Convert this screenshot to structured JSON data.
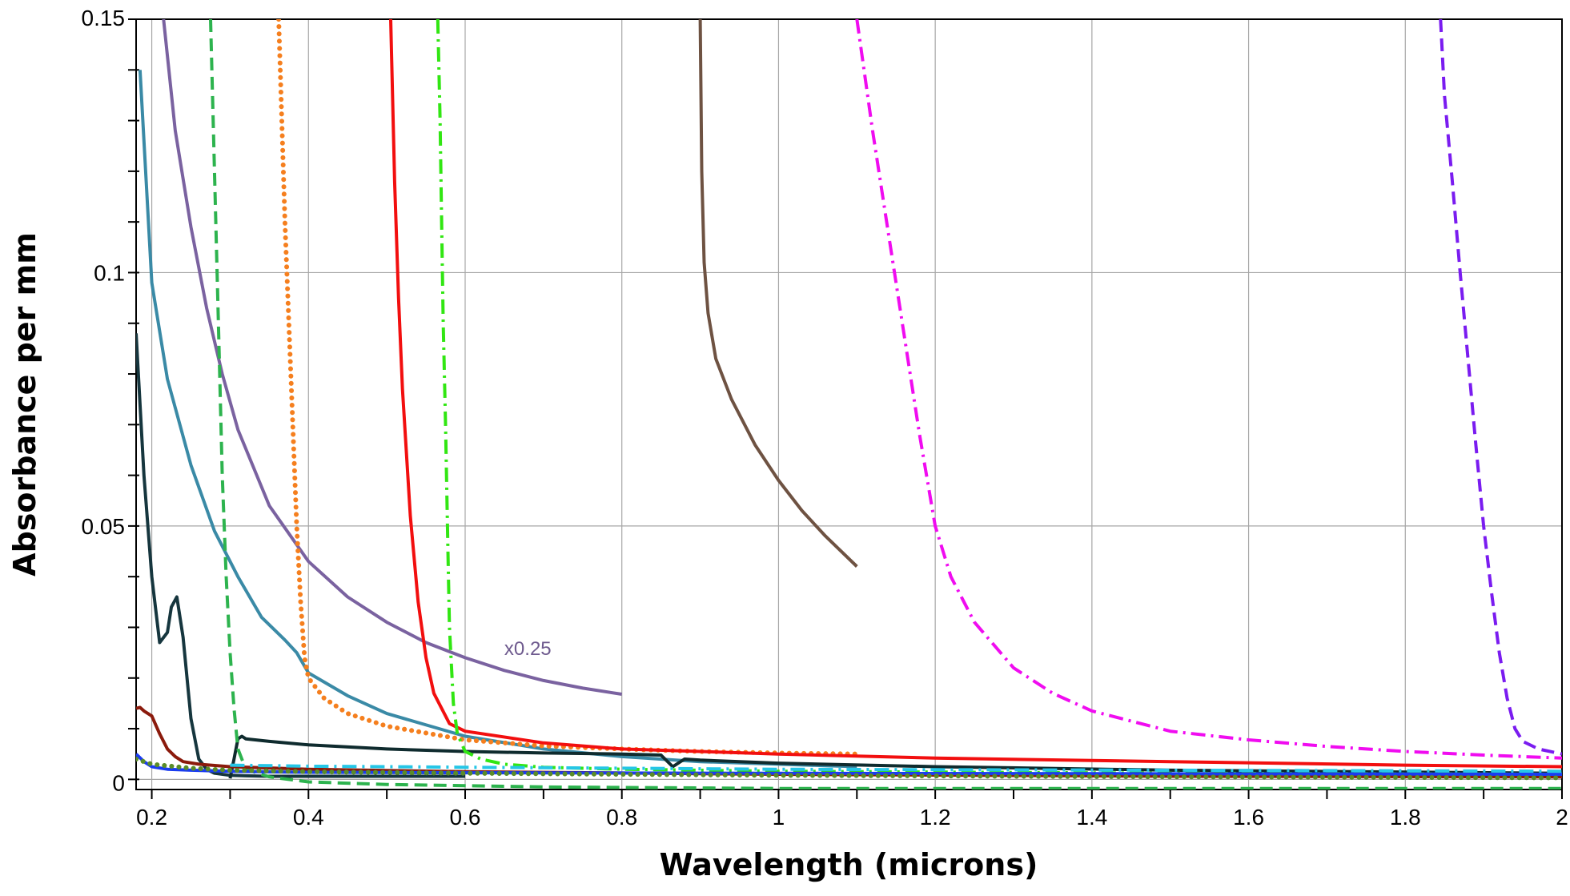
{
  "chart_data": {
    "type": "line",
    "xlabel": "Wavelength (microns)",
    "ylabel": "Absorbance per mm",
    "xlim": [
      0.18,
      2.0
    ],
    "ylim": [
      -0.002,
      0.15
    ],
    "x_ticks": [
      0.2,
      0.4,
      0.6,
      0.8,
      1,
      1.2,
      1.4,
      1.6,
      1.8,
      2
    ],
    "x_tick_labels": [
      "0.2",
      "0.4",
      "0.6",
      "0.8",
      "1",
      "1.2",
      "1.4",
      "1.6",
      "1.8",
      "2"
    ],
    "y_ticks": [
      0,
      0.05,
      0.1,
      0.15
    ],
    "y_tick_labels": [
      "0",
      "0.05",
      "0.1",
      "0.15"
    ],
    "grid": true,
    "legend": "none",
    "annotations": [
      {
        "text": "x0.25",
        "x": 0.65,
        "y": 0.023
      }
    ],
    "series": [
      {
        "color": "#7a62a0",
        "dash": "solid",
        "x": [
          0.215,
          0.23,
          0.25,
          0.27,
          0.29,
          0.31,
          0.35,
          0.4,
          0.45,
          0.5,
          0.55,
          0.6,
          0.65,
          0.7,
          0.75,
          0.8
        ],
        "y": [
          0.15,
          0.128,
          0.109,
          0.093,
          0.08,
          0.069,
          0.054,
          0.043,
          0.036,
          0.031,
          0.027,
          0.024,
          0.0215,
          0.0195,
          0.018,
          0.0168
        ]
      },
      {
        "color": "#3a8aa6",
        "dash": "solid",
        "x": [
          0.185,
          0.2,
          0.22,
          0.25,
          0.28,
          0.31,
          0.34,
          0.37,
          0.385,
          0.4,
          0.45,
          0.5,
          0.6,
          0.7,
          0.8,
          0.9,
          1.0,
          1.1
        ],
        "y": [
          0.14,
          0.098,
          0.079,
          0.062,
          0.049,
          0.04,
          0.032,
          0.0275,
          0.025,
          0.021,
          0.0165,
          0.013,
          0.0085,
          0.006,
          0.0045,
          0.0035,
          0.003,
          0.0025
        ]
      },
      {
        "color": "#16363e",
        "dash": "solid",
        "x": [
          0.18,
          0.19,
          0.2,
          0.21,
          0.22,
          0.225,
          0.232,
          0.24,
          0.25,
          0.26,
          0.27,
          0.28,
          0.3,
          0.32,
          0.35,
          0.4,
          0.5,
          0.6
        ],
        "y": [
          0.088,
          0.06,
          0.04,
          0.027,
          0.029,
          0.034,
          0.036,
          0.028,
          0.012,
          0.004,
          0.002,
          0.0012,
          0.0008,
          0.0007,
          0.0006,
          0.0006,
          0.0006,
          0.0006
        ]
      },
      {
        "color": "#0f2b2e",
        "dash": "solid",
        "x": [
          0.3,
          0.305,
          0.31,
          0.315,
          0.32,
          0.35,
          0.4,
          0.5,
          0.6,
          0.7,
          0.8,
          0.85,
          0.865,
          0.88,
          0.9,
          1.0,
          1.2,
          1.5,
          2.0
        ],
        "y": [
          0.0002,
          0.004,
          0.008,
          0.0085,
          0.008,
          0.0075,
          0.0068,
          0.006,
          0.0055,
          0.0052,
          0.005,
          0.0048,
          0.0025,
          0.004,
          0.0038,
          0.0032,
          0.0025,
          0.0018,
          0.0012
        ]
      },
      {
        "color": "#2db34e",
        "dash": "dashed",
        "x": [
          0.275,
          0.28,
          0.285,
          0.29,
          0.295,
          0.3,
          0.305,
          0.31,
          0.32,
          0.35,
          0.4,
          0.5,
          0.7,
          1.0,
          1.5,
          2.0
        ],
        "y": [
          0.15,
          0.12,
          0.09,
          0.06,
          0.04,
          0.025,
          0.014,
          0.006,
          0.002,
          0.0005,
          -0.0005,
          -0.001,
          -0.0015,
          -0.0018,
          -0.0018,
          -0.0018
        ]
      },
      {
        "color": "#f57f1e",
        "dash": "dotted",
        "x": [
          0.362,
          0.366,
          0.37,
          0.375,
          0.38,
          0.385,
          0.39,
          0.395,
          0.4,
          0.42,
          0.45,
          0.5,
          0.6,
          0.7,
          0.8,
          0.9,
          1.0,
          1.1
        ],
        "y": [
          0.15,
          0.13,
          0.11,
          0.09,
          0.07,
          0.05,
          0.035,
          0.024,
          0.02,
          0.016,
          0.013,
          0.0105,
          0.0078,
          0.0066,
          0.006,
          0.0055,
          0.0052,
          0.005
        ]
      },
      {
        "color": "#f20f0f",
        "dash": "solid",
        "x": [
          0.505,
          0.51,
          0.515,
          0.52,
          0.53,
          0.54,
          0.55,
          0.56,
          0.58,
          0.6,
          0.7,
          0.8,
          1.0,
          1.2,
          1.5,
          1.8,
          2.0
        ],
        "y": [
          0.15,
          0.118,
          0.095,
          0.077,
          0.052,
          0.035,
          0.024,
          0.017,
          0.011,
          0.0095,
          0.0072,
          0.006,
          0.005,
          0.0042,
          0.0035,
          0.0028,
          0.0025
        ]
      },
      {
        "color": "#31e612",
        "dash": "dashdot",
        "x": [
          0.565,
          0.568,
          0.57,
          0.572,
          0.575,
          0.578,
          0.58,
          0.585,
          0.59,
          0.6,
          0.62,
          0.65,
          0.7,
          0.8,
          1.0,
          1.5,
          2.0
        ],
        "y": [
          0.15,
          0.13,
          0.11,
          0.09,
          0.07,
          0.045,
          0.03,
          0.015,
          0.009,
          0.0055,
          0.004,
          0.003,
          0.0024,
          0.002,
          0.0016,
          0.0012,
          0.001
        ]
      },
      {
        "color": "#6e5242",
        "dash": "solid",
        "x": [
          0.9,
          0.902,
          0.905,
          0.91,
          0.92,
          0.94,
          0.97,
          1.0,
          1.03,
          1.06,
          1.1
        ],
        "y": [
          0.15,
          0.12,
          0.102,
          0.092,
          0.083,
          0.075,
          0.066,
          0.059,
          0.053,
          0.048,
          0.042
        ]
      },
      {
        "color": "#f00cf0",
        "dash": "dashdot",
        "x": [
          1.1,
          1.12,
          1.14,
          1.16,
          1.18,
          1.2,
          1.22,
          1.25,
          1.3,
          1.35,
          1.4,
          1.5,
          1.6,
          1.7,
          1.8,
          1.9,
          2.0
        ],
        "y": [
          0.15,
          0.128,
          0.108,
          0.088,
          0.068,
          0.05,
          0.04,
          0.031,
          0.022,
          0.017,
          0.0135,
          0.0095,
          0.0078,
          0.0065,
          0.0055,
          0.0048,
          0.0042
        ]
      },
      {
        "color": "#7a1cf0",
        "dash": "dashed",
        "x": [
          1.845,
          1.85,
          1.86,
          1.87,
          1.88,
          1.89,
          1.9,
          1.91,
          1.92,
          1.93,
          1.94,
          1.95,
          1.97,
          2.0
        ],
        "y": [
          0.15,
          0.135,
          0.118,
          0.1,
          0.083,
          0.066,
          0.05,
          0.037,
          0.025,
          0.016,
          0.01,
          0.0075,
          0.006,
          0.005
        ]
      },
      {
        "color": "#8b1a0c",
        "dash": "solid",
        "x": [
          0.18,
          0.185,
          0.19,
          0.2,
          0.21,
          0.22,
          0.23,
          0.24,
          0.26,
          0.3,
          0.4,
          0.6,
          1.0,
          1.5,
          2.0
        ],
        "y": [
          0.014,
          0.0142,
          0.0135,
          0.0125,
          0.009,
          0.006,
          0.0045,
          0.0035,
          0.003,
          0.0025,
          0.002,
          0.0015,
          0.001,
          0.0006,
          0.0005
        ]
      },
      {
        "color": "#1a3cf0",
        "dash": "solid",
        "x": [
          0.18,
          0.19,
          0.2,
          0.22,
          0.25,
          0.3,
          0.4,
          0.6,
          1.0,
          1.5,
          2.0
        ],
        "y": [
          0.005,
          0.0035,
          0.0025,
          0.002,
          0.0018,
          0.0016,
          0.0014,
          0.0013,
          0.0012,
          0.0011,
          0.001
        ]
      },
      {
        "color": "#26c6e6",
        "dash": "dashdot",
        "x": [
          0.3,
          0.4,
          0.5,
          0.6,
          0.7,
          0.8,
          0.9,
          1.0,
          1.2,
          1.5,
          1.8,
          2.0
        ],
        "y": [
          0.0028,
          0.0026,
          0.0025,
          0.0024,
          0.0023,
          0.0022,
          0.0021,
          0.002,
          0.0019,
          0.0018,
          0.0017,
          0.0016
        ]
      },
      {
        "color": "#5a8c28",
        "dash": "dotted",
        "x": [
          0.18,
          0.2,
          0.25,
          0.3,
          0.4,
          0.6,
          0.8,
          1.0,
          1.5,
          2.0
        ],
        "y": [
          0.004,
          0.003,
          0.0022,
          0.0018,
          0.0015,
          0.0012,
          0.001,
          0.0008,
          0.0005,
          0.0003
        ]
      }
    ]
  }
}
